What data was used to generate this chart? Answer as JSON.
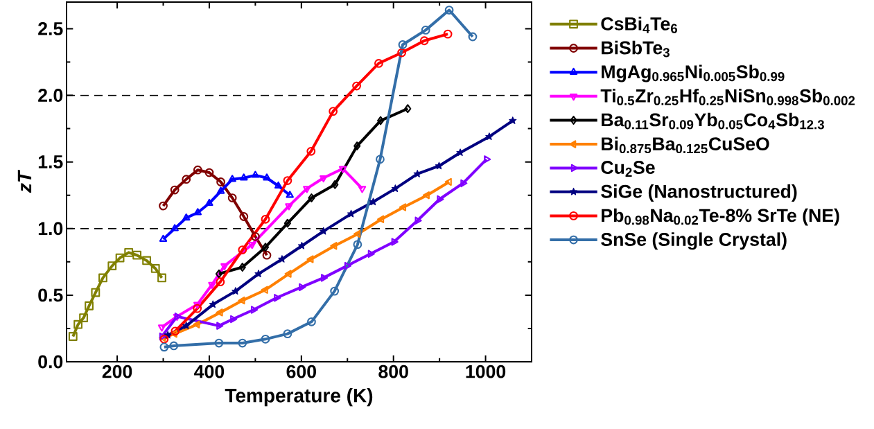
{
  "chart_data": {
    "type": "line",
    "xlabel": "Temperature (K)",
    "ylabel": "zT",
    "xlim": [
      90,
      1100
    ],
    "ylim": [
      0,
      2.7
    ],
    "xticks": [
      200,
      400,
      600,
      800,
      1000
    ],
    "yticks": [
      {
        "value": 0,
        "label": "0.0"
      },
      {
        "value": 0.5,
        "label": "0.5"
      },
      {
        "value": 1,
        "label": "1.0"
      },
      {
        "value": 1.5,
        "label": "1.5"
      },
      {
        "value": 2,
        "label": "2.0"
      },
      {
        "value": 2.5,
        "label": "2.5"
      }
    ],
    "legend": "right",
    "ref_lines": [
      {
        "axis": "y",
        "value": 1,
        "line_style": "dashed",
        "color": "#000000"
      },
      {
        "axis": "y",
        "value": 2,
        "line_style": "dashed",
        "color": "#000000"
      }
    ],
    "series": [
      {
        "name": "CsBi$_{4}$Te$_{6}$",
        "color": "#808000",
        "marker": "square",
        "x": [
          104,
          115,
          127,
          139,
          153,
          169,
          189,
          206,
          225,
          243,
          264,
          283,
          297
        ],
        "values": [
          0.19,
          0.28,
          0.33,
          0.42,
          0.52,
          0.63,
          0.72,
          0.78,
          0.82,
          0.8,
          0.76,
          0.7,
          0.63
        ]
      },
      {
        "name": "BiSbTe$_{3}$",
        "color": "#800000",
        "marker": "circle",
        "x": [
          300,
          325,
          350,
          375,
          400,
          425,
          450,
          475,
          500,
          525
        ],
        "values": [
          1.17,
          1.29,
          1.37,
          1.44,
          1.42,
          1.35,
          1.23,
          1.09,
          0.94,
          0.8
        ]
      },
      {
        "name": "MgAg$_{0.965}$Ni$_{0.005}$Sb$_{0.99}$",
        "color": "#0000ff",
        "marker": "triangle",
        "x": [
          300,
          325,
          350,
          375,
          400,
          425,
          450,
          475,
          500,
          525,
          550,
          575
        ],
        "values": [
          0.92,
          1.0,
          1.08,
          1.12,
          1.19,
          1.28,
          1.37,
          1.38,
          1.4,
          1.38,
          1.32,
          1.25
        ]
      },
      {
        "name": "Ti$_{0.5}$Zr$_{0.25}$Hf$_{0.25}$NiSn$_{0.998}$Sb$_{0.002}$",
        "color": "#ff00ff",
        "marker": "triangle-down",
        "x": [
          297,
          330,
          374,
          406,
          433,
          493,
          573,
          612,
          648,
          690,
          732
        ],
        "values": [
          0.26,
          0.34,
          0.43,
          0.58,
          0.72,
          0.88,
          1.17,
          1.3,
          1.38,
          1.45,
          1.3
        ]
      },
      {
        "name": "Ba$_{0.11}$Sr$_{0.09}$Yb$_{0.05}$Co$_{4}$Sb$_{12.3}$",
        "color": "#000000",
        "marker": "diamond",
        "x": [
          421,
          472,
          522,
          570,
          622,
          673,
          721,
          772,
          831
        ],
        "values": [
          0.66,
          0.71,
          0.86,
          1.04,
          1.23,
          1.33,
          1.62,
          1.81,
          1.9
        ]
      },
      {
        "name": "Bi$_{0.875}$Ba$_{0.125}$CuSeO",
        "color": "#ff8000",
        "marker": "triangle-left",
        "x": [
          300,
          325,
          374,
          424,
          472,
          522,
          573,
          621,
          672,
          723,
          774,
          822,
          873,
          921
        ],
        "values": [
          0.18,
          0.21,
          0.28,
          0.37,
          0.46,
          0.54,
          0.66,
          0.77,
          0.87,
          0.96,
          1.07,
          1.16,
          1.25,
          1.35
        ]
      },
      {
        "name": "Cu$_{2}$Se",
        "color": "#8000ff",
        "marker": "triangle-right",
        "x": [
          297,
          330,
          421,
          451,
          496,
          546,
          600,
          648,
          699,
          750,
          801,
          852,
          900,
          951,
          1002
        ],
        "values": [
          0.19,
          0.34,
          0.27,
          0.32,
          0.39,
          0.48,
          0.56,
          0.63,
          0.72,
          0.81,
          0.9,
          1.06,
          1.22,
          1.34,
          1.52
        ]
      },
      {
        "name": "SiGe (Nanostructured)",
        "color": "#000080",
        "marker": "star",
        "x": [
          310,
          350,
          408,
          457,
          507,
          558,
          601,
          648,
          708,
          756,
          804,
          852,
          899,
          945,
          1008,
          1059
        ],
        "values": [
          0.2,
          0.27,
          0.43,
          0.53,
          0.66,
          0.77,
          0.87,
          0.98,
          1.11,
          1.2,
          1.3,
          1.41,
          1.47,
          1.57,
          1.69,
          1.81
        ]
      },
      {
        "name": "Pb$_{0.98}$Na$_{0.02}$Te-8% SrTe (NE)",
        "color": "#ff0000",
        "marker": "circle",
        "x": [
          302,
          326,
          374,
          424,
          472,
          522,
          570,
          621,
          669,
          720,
          768,
          818,
          867,
          918
        ],
        "values": [
          0.17,
          0.23,
          0.4,
          0.6,
          0.84,
          1.07,
          1.36,
          1.58,
          1.88,
          2.07,
          2.24,
          2.32,
          2.41,
          2.46
        ]
      },
      {
        "name": "SnSe (Single Crystal)",
        "color": "#336ea8",
        "marker": "circle",
        "x": [
          302,
          323,
          421,
          472,
          522,
          570,
          622,
          672,
          722,
          771,
          820,
          870,
          921,
          972
        ],
        "values": [
          0.11,
          0.12,
          0.14,
          0.14,
          0.17,
          0.21,
          0.3,
          0.53,
          0.88,
          1.52,
          2.38,
          2.49,
          2.64,
          2.44
        ]
      }
    ]
  }
}
